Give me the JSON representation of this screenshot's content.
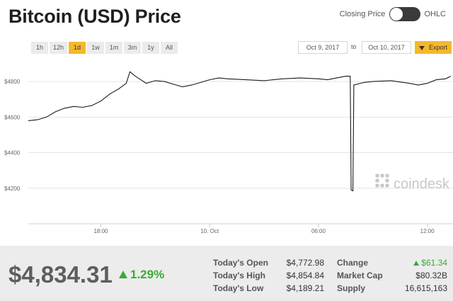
{
  "header": {
    "title": "Bitcoin (USD) Price",
    "toggle_left": "Closing Price",
    "toggle_right": "OHLC"
  },
  "range_buttons": [
    "1h",
    "12h",
    "1d",
    "1w",
    "1m",
    "3m",
    "1y",
    "All"
  ],
  "active_range": "1d",
  "date_from": "Oct 9, 2017",
  "date_to_label": "to",
  "date_to": "Oct 10, 2017",
  "export_label": "Export",
  "watermark": "coindesk",
  "chart_data": {
    "type": "line",
    "x_ticks": [
      "18:00",
      "10. Oct",
      "06:00",
      "12:00"
    ],
    "y_ticks": [
      "$4200",
      "$4400",
      "$4600",
      "$4800"
    ],
    "ylim": [
      4000,
      4900
    ],
    "grid": true,
    "series": [
      {
        "points": [
          [
            14.0,
            4580
          ],
          [
            14.5,
            4585
          ],
          [
            15.0,
            4600
          ],
          [
            15.5,
            4630
          ],
          [
            16.0,
            4650
          ],
          [
            16.5,
            4660
          ],
          [
            17.0,
            4655
          ],
          [
            17.5,
            4665
          ],
          [
            18.0,
            4690
          ],
          [
            18.5,
            4730
          ],
          [
            19.0,
            4760
          ],
          [
            19.4,
            4790
          ],
          [
            19.6,
            4855
          ],
          [
            19.9,
            4830
          ],
          [
            20.2,
            4810
          ],
          [
            20.5,
            4790
          ],
          [
            21.0,
            4805
          ],
          [
            21.5,
            4800
          ],
          [
            22.0,
            4785
          ],
          [
            22.5,
            4770
          ],
          [
            23.0,
            4780
          ],
          [
            23.5,
            4795
          ],
          [
            24.0,
            4810
          ],
          [
            24.5,
            4820
          ],
          [
            25.0,
            4815
          ],
          [
            26.0,
            4810
          ],
          [
            27.0,
            4805
          ],
          [
            28.0,
            4815
          ],
          [
            29.0,
            4820
          ],
          [
            30.0,
            4815
          ],
          [
            30.5,
            4810
          ],
          [
            31.0,
            4820
          ],
          [
            31.5,
            4830
          ],
          [
            31.75,
            4830
          ],
          [
            31.8,
            4190
          ],
          [
            31.9,
            4185
          ],
          [
            31.95,
            4780
          ],
          [
            32.5,
            4795
          ],
          [
            33.0,
            4800
          ],
          [
            34.0,
            4805
          ],
          [
            35.0,
            4790
          ],
          [
            35.5,
            4780
          ],
          [
            36.0,
            4790
          ],
          [
            36.5,
            4810
          ],
          [
            37.0,
            4815
          ],
          [
            37.3,
            4830
          ]
        ]
      }
    ],
    "x_tick_hours": [
      18,
      24,
      30,
      36
    ]
  },
  "stats": {
    "price": "$4,834.31",
    "change_pct": "1.29%",
    "open_label": "Today's Open",
    "open_value": "$4,772.98",
    "high_label": "Today's High",
    "high_value": "$4,854.84",
    "low_label": "Today's Low",
    "low_value": "$4,189.21",
    "change_label": "Change",
    "change_value": "$61.34",
    "mcap_label": "Market Cap",
    "mcap_value": "$80.32B",
    "supply_label": "Supply",
    "supply_value": "16,615,163"
  },
  "colors": {
    "accent": "#f4b82b",
    "line": "#1a1a1a",
    "positive": "#3aaa35"
  }
}
